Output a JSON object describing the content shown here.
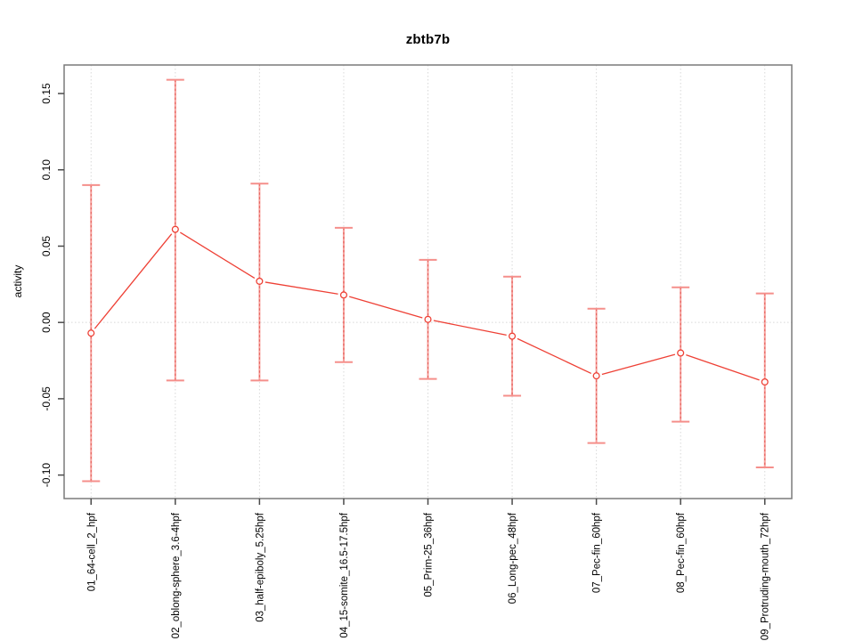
{
  "figure": {
    "background": "#ffffff"
  },
  "chart_data": {
    "type": "line",
    "title": "zbtb7b",
    "ylabel": "activity",
    "xlabel": "",
    "legend": "none",
    "categories": [
      "01_64-cell_2_hpf",
      "02_oblong-sphere_3.6-4hpf",
      "03_half-epiboly_5.25hpf",
      "04_15-somite_16.5-17.5hpf",
      "05_Prim-25_36hpf",
      "06_Long-pec_48hpf",
      "07_Pec-fin_60hpf",
      "08_Pec-fin_60hpf",
      "09_Protruding-mouth_72hpf"
    ],
    "series": [
      {
        "name": "activity",
        "values": [
          -0.007,
          0.061,
          0.027,
          0.018,
          0.002,
          -0.009,
          -0.035,
          -0.02,
          -0.039
        ],
        "error_upper": [
          0.09,
          0.159,
          0.091,
          0.062,
          0.041,
          0.03,
          0.009,
          0.023,
          0.019
        ],
        "error_lower": [
          -0.104,
          -0.038,
          -0.038,
          -0.026,
          -0.037,
          -0.048,
          -0.079,
          -0.065,
          -0.095
        ],
        "marker": "open-circle"
      }
    ],
    "yticks": [
      -0.1,
      -0.05,
      0.0,
      0.05,
      0.1,
      0.15
    ],
    "ytick_labels": [
      "-0.10",
      "-0.05",
      "0.00",
      "0.05",
      "0.10",
      "0.15"
    ],
    "ylim": [
      -0.1154,
      0.1687
    ],
    "xlim": [
      0.68,
      9.32
    ],
    "grid": {
      "vertical_at_each_category": true,
      "horizontal_at_zero": true,
      "line_style": "dotted"
    },
    "colors": {
      "line": "#ee4035",
      "marker": "#ee4035",
      "error_bar_stem": "#f7a29e",
      "error_bar_dash": "#e0524c",
      "error_bar_cap": "#f58f8b",
      "gridline": "#d8d8d8",
      "plot_border": "#7a7a7a",
      "axis_tick": "#4a4a4a",
      "text": "#000000"
    }
  }
}
